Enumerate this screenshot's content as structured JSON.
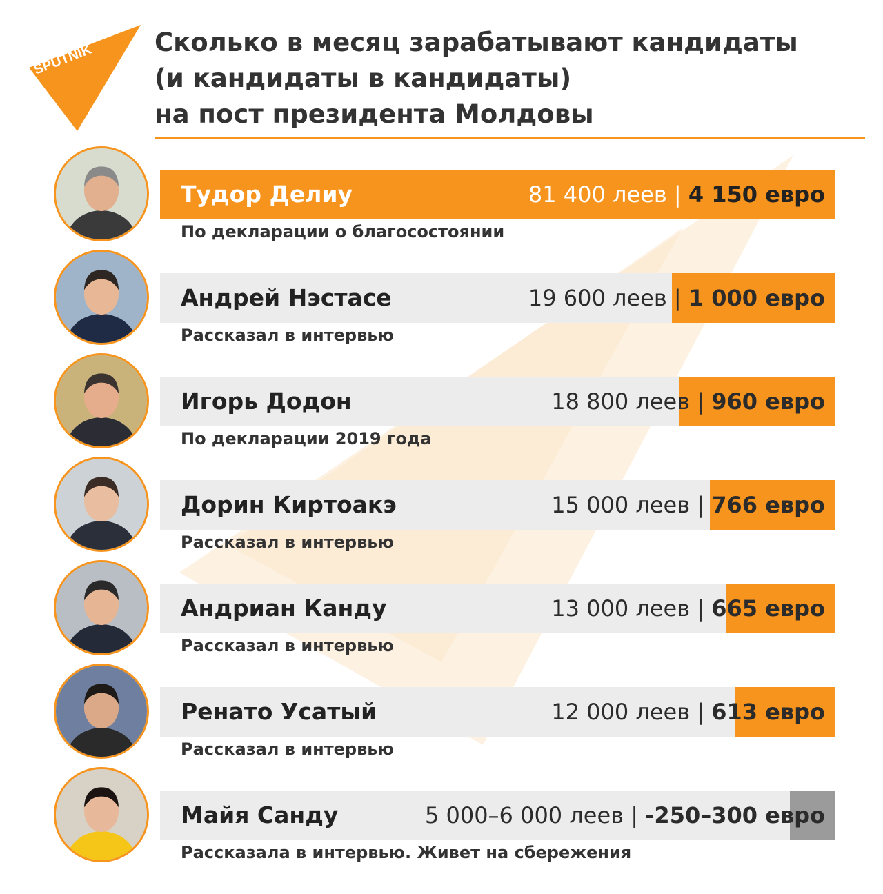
{
  "brand": {
    "logo_text": "SPUTNIK",
    "accent": "#f7941d"
  },
  "title_lines": [
    "Сколько в месяц зарабатывают кандидаты",
    "(и кандидаты в кандидаты)",
    "на пост президента Молдовы"
  ],
  "chart_data": {
    "type": "bar",
    "orientation": "horizontal",
    "categories": [
      "Тудор Делиу",
      "Андрей Нэстасе",
      "Игорь Додон",
      "Дорин Киртоакэ",
      "Андриан Канду",
      "Ренато Усатый",
      "Майя Санду"
    ],
    "series": [
      {
        "values": [
          4150,
          1000,
          960,
          766,
          665,
          613,
          275
        ]
      }
    ],
    "value_labels": [
      {
        "lei": "81 400 леев",
        "separator": "|",
        "eur": "4 150 евро"
      },
      {
        "lei": "19 600 леев",
        "separator": "|",
        "eur": "1 000 евро"
      },
      {
        "lei": "18 800 леев",
        "separator": "|",
        "eur": "960 евро"
      },
      {
        "lei": "15 000 леев",
        "separator": "|",
        "eur": "766 евро"
      },
      {
        "lei": "13 000 леев",
        "separator": "|",
        "eur": "665 евро"
      },
      {
        "lei": "12 000 леев",
        "separator": "|",
        "eur": "613 евро"
      },
      {
        "lei": "5 000–6 000 леев",
        "separator": "|",
        "eur": "-250–300 евро"
      }
    ],
    "notes": [
      "По декларации о благосостоянии",
      "Рассказал в интервью",
      "По декларации 2019 года",
      "Рассказал в интервью",
      "Рассказал в интервью",
      "Рассказал в интервью",
      "Рассказала в интервью. Живет на сбережения"
    ],
    "bar_colors": [
      "#f7941d",
      "#f7941d",
      "#f7941d",
      "#f7941d",
      "#f7941d",
      "#f7941d",
      "#9b9b9b"
    ],
    "track_color": "#ececec"
  }
}
